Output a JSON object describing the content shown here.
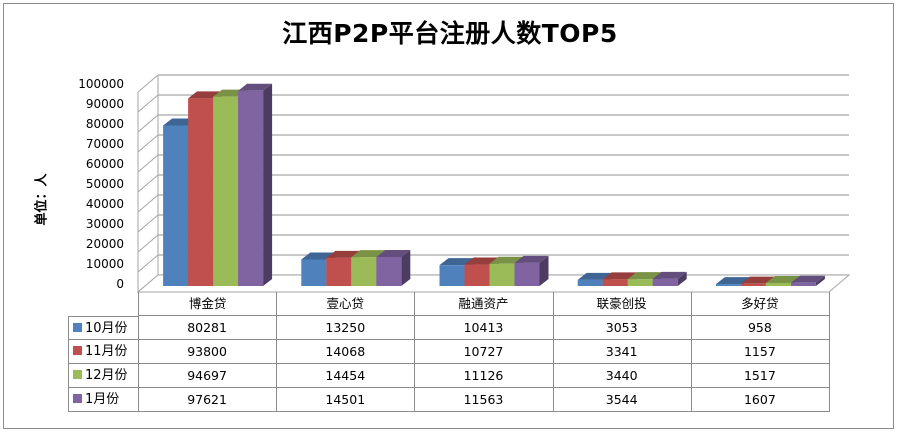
{
  "chart_data": {
    "type": "bar",
    "variant": "3d-clustered-column-with-data-table",
    "title": "江西P2P平台注册人数TOP5",
    "xlabel": "",
    "ylabel": "单位：人",
    "ylim": [
      0,
      100000
    ],
    "yticks": [
      0,
      10000,
      20000,
      30000,
      40000,
      50000,
      60000,
      70000,
      80000,
      90000,
      100000
    ],
    "grid": true,
    "legend_position": "data-table",
    "categories": [
      "博金贷",
      "壹心贷",
      "融通资产",
      "联豪创投",
      "多好贷"
    ],
    "series": [
      {
        "name": "10月份",
        "color": "#4f81bd",
        "values": [
          80281,
          13250,
          10413,
          3053,
          958
        ]
      },
      {
        "name": "11月份",
        "color": "#c0504d",
        "values": [
          93800,
          14068,
          10727,
          3341,
          1157
        ]
      },
      {
        "name": "12月份",
        "color": "#9bbb59",
        "values": [
          94697,
          14454,
          11126,
          3440,
          1517
        ]
      },
      {
        "name": "1月份",
        "color": "#8064a2",
        "values": [
          97621,
          14501,
          11563,
          3544,
          1607
        ]
      }
    ]
  }
}
